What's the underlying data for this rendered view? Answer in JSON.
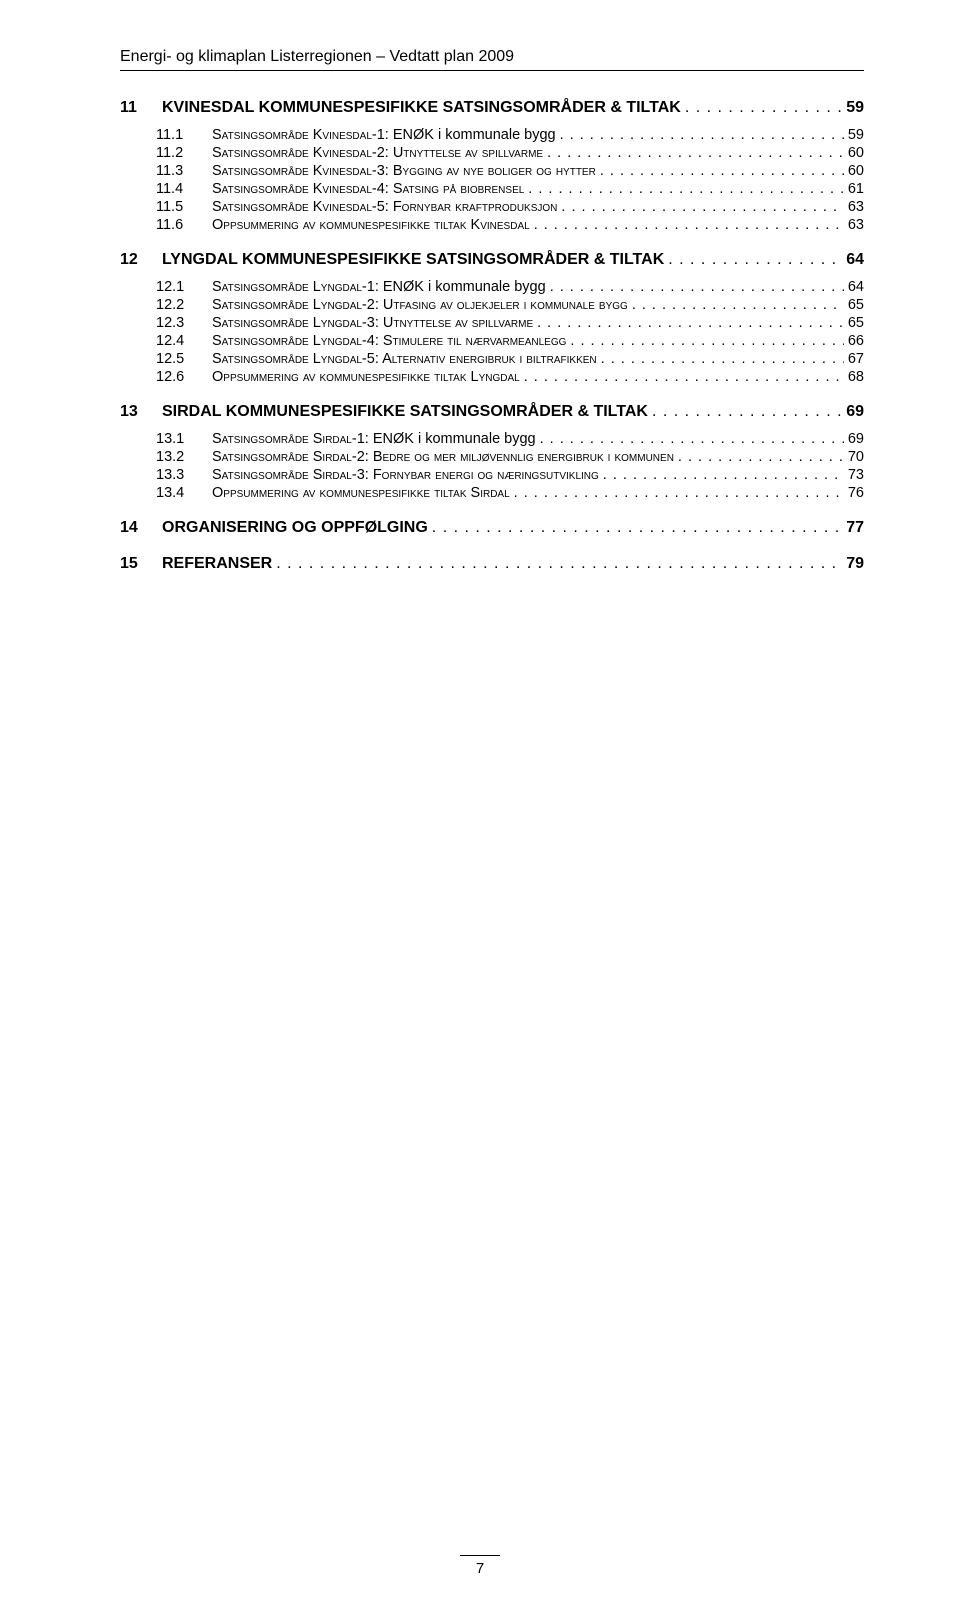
{
  "header": "Energi- og klimaplan Listerregionen – Vedtatt plan 2009",
  "page_number": "7",
  "sections": [
    {
      "num": "11",
      "title": "KVINESDAL KOMMUNESPESIFIKKE SATSINGSOMRÅDER & TILTAK",
      "page": "59",
      "subs": [
        {
          "num": "11.1",
          "title_sc": "Satsingsområde Kvinesdal-1: ENØK ",
          "title_tail": "i kommunale bygg",
          "page": "59"
        },
        {
          "num": "11.2",
          "title_sc": "Satsingsområde Kvinesdal-2: Utnyttelse av spillvarme",
          "title_tail": "",
          "page": "60"
        },
        {
          "num": "11.3",
          "title_sc": "Satsingsområde Kvinesdal-3: Bygging av nye boliger og hytter",
          "title_tail": "",
          "page": "60"
        },
        {
          "num": "11.4",
          "title_sc": "Satsingsområde Kvinesdal-4: Satsing på biobrensel",
          "title_tail": "",
          "page": "61"
        },
        {
          "num": "11.5",
          "title_sc": "Satsingsområde Kvinesdal-5: Fornybar kraftproduksjon",
          "title_tail": "",
          "page": "63"
        },
        {
          "num": "11.6",
          "title_sc": "Oppsummering av kommunespesifikke tiltak Kvinesdal",
          "title_tail": "",
          "page": "63"
        }
      ]
    },
    {
      "num": "12",
      "title": "LYNGDAL KOMMUNESPESIFIKKE SATSINGSOMRÅDER & TILTAK",
      "page": "64",
      "subs": [
        {
          "num": "12.1",
          "title_sc": "Satsingsområde Lyngdal-1: ENØK ",
          "title_tail": "i kommunale bygg",
          "page": "64"
        },
        {
          "num": "12.2",
          "title_sc": "Satsingsområde Lyngdal-2: Utfasing av oljekjeler i kommunale bygg",
          "title_tail": "",
          "page": "65"
        },
        {
          "num": "12.3",
          "title_sc": "Satsingsområde Lyngdal-3: Utnyttelse av spillvarme",
          "title_tail": "",
          "page": "65"
        },
        {
          "num": "12.4",
          "title_sc": "Satsingsområde Lyngdal-4: Stimulere til nærvarmeanlegg",
          "title_tail": "",
          "page": "66"
        },
        {
          "num": "12.5",
          "title_sc": "Satsingsområde Lyngdal-5: Alternativ energibruk i biltrafikken",
          "title_tail": "",
          "page": "67"
        },
        {
          "num": "12.6",
          "title_sc": "Oppsummering av kommunespesifikke tiltak Lyngdal",
          "title_tail": "",
          "page": "68"
        }
      ]
    },
    {
      "num": "13",
      "title": "SIRDAL KOMMUNESPESIFIKKE SATSINGSOMRÅDER & TILTAK",
      "page": "69",
      "subs": [
        {
          "num": "13.1",
          "title_sc": "Satsingsområde Sirdal-1: ENØK ",
          "title_tail": "i kommunale bygg",
          "page": "69"
        },
        {
          "num": "13.2",
          "title_sc": "Satsingsområde Sirdal-2: Bedre og mer miljøvennlig energibruk i kommunen",
          "title_tail": "",
          "page": "70"
        },
        {
          "num": "13.3",
          "title_sc": "Satsingsområde Sirdal-3: Fornybar energi og næringsutvikling",
          "title_tail": "",
          "page": "73"
        },
        {
          "num": "13.4",
          "title_sc": "Oppsummering av kommunespesifikke tiltak Sirdal",
          "title_tail": "",
          "page": "76"
        }
      ]
    },
    {
      "num": "14",
      "title": "ORGANISERING OG OPPFØLGING",
      "page": "77",
      "subs": []
    },
    {
      "num": "15",
      "title": "REFERANSER",
      "page": "79",
      "subs": []
    }
  ]
}
